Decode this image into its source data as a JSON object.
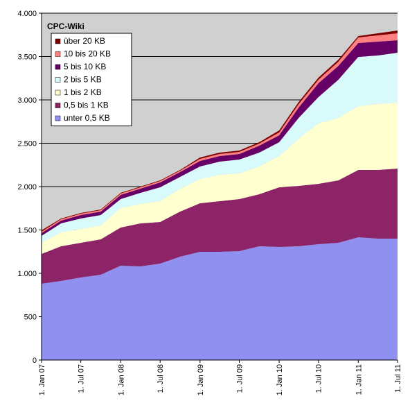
{
  "chart_data": {
    "type": "stacked_area",
    "title": "CPC-Wiki",
    "x": [
      "2007-01-01",
      "2007-04-01",
      "2007-07-01",
      "2007-10-01",
      "2008-01-01",
      "2008-04-01",
      "2008-07-01",
      "2008-10-01",
      "2009-01-01",
      "2009-04-01",
      "2009-07-01",
      "2009-10-01",
      "2010-01-01",
      "2010-04-01",
      "2010-07-01",
      "2010-10-01",
      "2011-01-01",
      "2011-04-01",
      "2011-07-01"
    ],
    "series": [
      {
        "name": "unter 0,5 KB",
        "color": "#9090f0",
        "values": [
          880,
          912,
          952,
          984,
          1088,
          1080,
          1112,
          1192,
          1248,
          1248,
          1256,
          1312,
          1304,
          1312,
          1336,
          1352,
          1416,
          1400,
          1400
        ]
      },
      {
        "name": "0,5 bis 1 KB",
        "color": "#8e2468",
        "values": [
          344,
          400,
          400,
          408,
          440,
          496,
          480,
          520,
          560,
          584,
          600,
          600,
          688,
          696,
          696,
          720,
          776,
          792,
          808
        ]
      },
      {
        "name": "1 bis 2 KB",
        "color": "#ffffd0",
        "values": [
          128,
          160,
          160,
          160,
          224,
          224,
          240,
          264,
          280,
          304,
          296,
          320,
          360,
          544,
          696,
          720,
          736,
          760,
          760
        ]
      },
      {
        "name": "2 bis 5 KB",
        "color": "#d8fafa",
        "values": [
          80,
          104,
          120,
          120,
          104,
          128,
          160,
          136,
          144,
          152,
          160,
          160,
          160,
          240,
          304,
          440,
          568,
          560,
          576
        ]
      },
      {
        "name": "5 bis 10 KB",
        "color": "#660066",
        "values": [
          32,
          32,
          40,
          40,
          48,
          48,
          56,
          56,
          64,
          64,
          64,
          80,
          80,
          120,
          160,
          160,
          160,
          160,
          144
        ]
      },
      {
        "name": "10 bis 20 KB",
        "color": "#ff8080",
        "values": [
          16,
          16,
          16,
          16,
          16,
          16,
          16,
          16,
          24,
          24,
          24,
          24,
          32,
          40,
          40,
          48,
          64,
          72,
          80
        ]
      },
      {
        "name": "über 20 KB",
        "color": "#800000",
        "values": [
          16,
          8,
          8,
          8,
          8,
          8,
          8,
          8,
          16,
          16,
          16,
          16,
          24,
          24,
          24,
          24,
          16,
          24,
          32
        ]
      }
    ],
    "xlim": [
      "2007-01-01",
      "2011-07-01"
    ],
    "xticks": [
      {
        "value": "2007-01-01",
        "label": "1. Jan 07"
      },
      {
        "value": "2007-07-01",
        "label": "1. Jul 07"
      },
      {
        "value": "2008-01-01",
        "label": "1. Jan 08"
      },
      {
        "value": "2008-07-01",
        "label": "1. Jul 08"
      },
      {
        "value": "2009-01-01",
        "label": "1. Jan 09"
      },
      {
        "value": "2009-07-01",
        "label": "1. Jul 09"
      },
      {
        "value": "2010-01-01",
        "label": "1. Jan 10"
      },
      {
        "value": "2010-07-01",
        "label": "1. Jul 10"
      },
      {
        "value": "2011-01-01",
        "label": "1. Jan 11"
      },
      {
        "value": "2011-07-01",
        "label": "1. Jul 11"
      }
    ],
    "ylim": [
      0,
      4000
    ],
    "yticks": [
      0,
      500,
      {
        "value": 1000,
        "label": "1.000"
      },
      {
        "value": 1500,
        "label": "1.500"
      },
      {
        "value": 2000,
        "label": "2.000"
      },
      {
        "value": 2500,
        "label": "2.500"
      },
      {
        "value": 3000,
        "label": "3.000"
      },
      {
        "value": 3500,
        "label": "3.500"
      },
      {
        "value": 4000,
        "label": "4.000"
      }
    ],
    "grid": true,
    "legend": "upper left"
  }
}
